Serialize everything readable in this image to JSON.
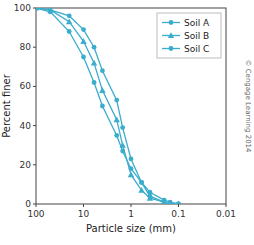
{
  "chart_data": {
    "type": "line",
    "xlabel": "Particle size (mm)",
    "ylabel": "Percent finer",
    "annotations": [
      "© Cengage Learning 2014"
    ],
    "x": [
      100,
      50,
      20,
      10,
      6,
      4,
      2,
      1.5,
      1,
      0.6,
      0.4,
      0.2,
      0.15,
      0.1
    ],
    "series": [
      {
        "name": "Soil A",
        "color": "#3aaccc",
        "marker": "circle",
        "values": [
          100,
          98,
          88,
          75,
          62,
          50,
          35,
          27,
          18,
          11,
          6,
          2,
          1,
          0
        ]
      },
      {
        "name": "Soil B",
        "color": "#3aaccc",
        "marker": "triangle",
        "values": [
          100,
          99,
          93,
          83,
          72,
          58,
          43,
          30,
          15,
          7,
          3,
          1,
          0,
          0
        ]
      },
      {
        "name": "Soil C",
        "color": "#3aaccc",
        "marker": "circle",
        "values": [
          100,
          99,
          96,
          89,
          80,
          68,
          53,
          39,
          23,
          11,
          4,
          1,
          0,
          0
        ]
      }
    ],
    "xlim": [
      100,
      0.01
    ],
    "ylim": [
      0,
      100
    ],
    "xticks": [
      100,
      10,
      1,
      0.1,
      0.01
    ],
    "yticks": [
      0,
      20,
      40,
      60,
      80,
      100
    ],
    "log": "x",
    "grid": false,
    "legend": "upper right"
  }
}
